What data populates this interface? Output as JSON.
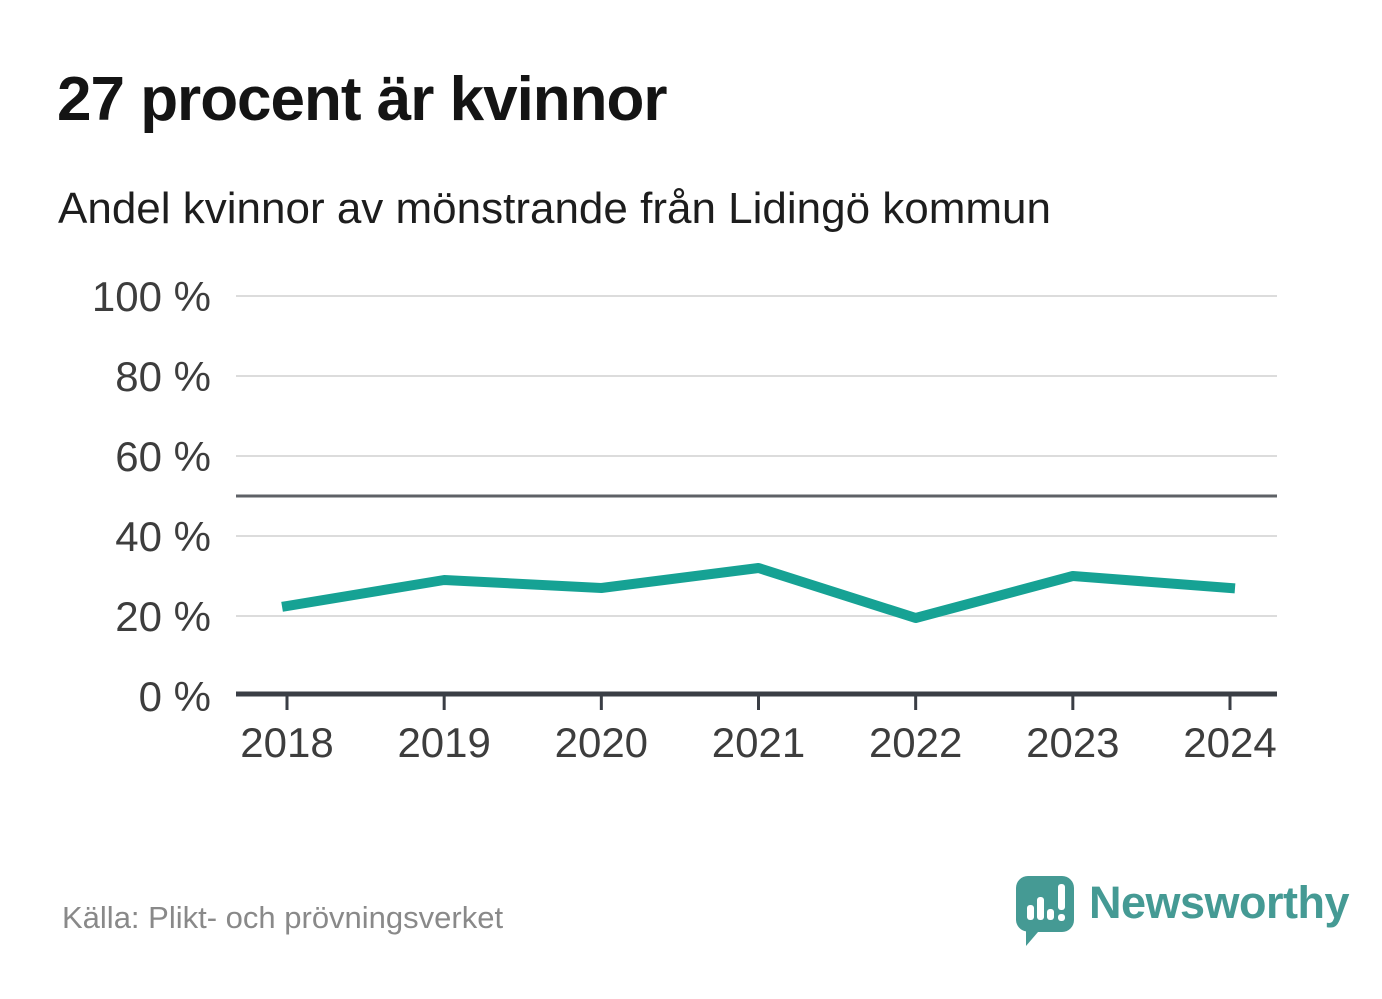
{
  "header": {
    "title": "27 procent är kvinnor",
    "subtitle": "Andel kvinnor av mönstrande från Lidingö kommun"
  },
  "chart_data": {
    "type": "line",
    "x": [
      "2018",
      "2019",
      "2020",
      "2021",
      "2022",
      "2023",
      "2024"
    ],
    "series": [
      {
        "name": "Andel kvinnor av mönstrande från Lidingö kommun",
        "values": [
          22.5,
          29,
          27,
          32,
          19.5,
          30,
          27
        ]
      }
    ],
    "ylim": [
      0,
      100
    ],
    "yticks": [
      0,
      20,
      40,
      60,
      80,
      100
    ],
    "ytick_suffix": " %",
    "reference_line": 50,
    "grid": "horizontal",
    "legend": "none",
    "xlabel": "",
    "ylabel": ""
  },
  "footer": {
    "source": "Källa: Plikt- och prövningsverket",
    "brand": {
      "wordmark": "Newsworthy",
      "logo_icon": "speech-bubble-bar-chart-icon"
    }
  },
  "colors": {
    "line": "#16a294",
    "grid": "#dcdcdc",
    "reference_line": "#5e6166",
    "axis": "#3a3e45",
    "tick_label": "#3d3d3d",
    "title": "#141414",
    "subtitle": "#1d1d1d",
    "source": "#898989",
    "brand": "#459a94",
    "background": "#ffffff"
  }
}
